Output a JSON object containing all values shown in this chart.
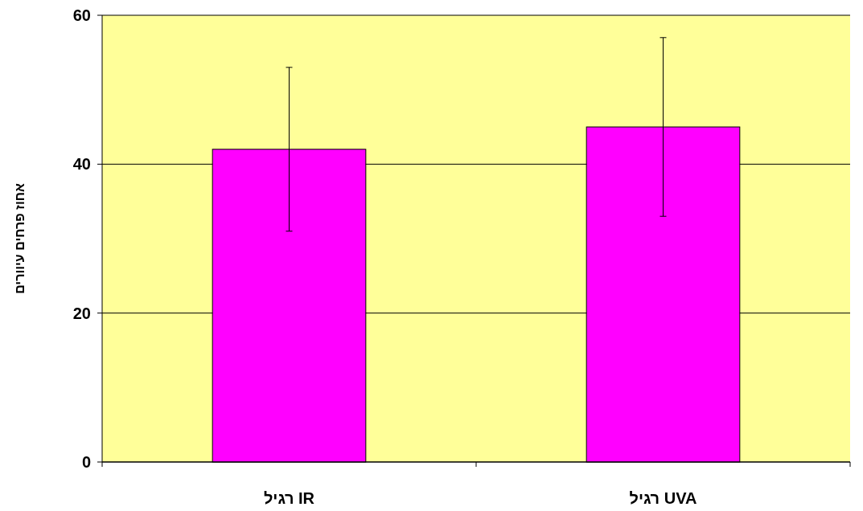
{
  "chart_data": {
    "type": "bar",
    "ylabel": "אחוז פרחים עיוורים",
    "categories": [
      "IR רגיל",
      "UVA רגיל"
    ],
    "values": [
      42,
      45
    ],
    "errors": [
      11,
      12
    ],
    "color": "#ff00ff",
    "ylim": [
      0,
      60
    ],
    "yticks": [
      0,
      20,
      40,
      60
    ],
    "grid": "y"
  }
}
